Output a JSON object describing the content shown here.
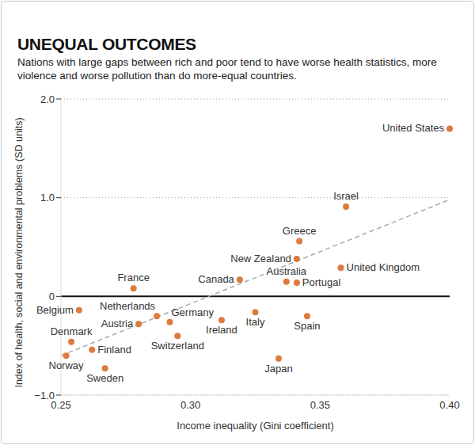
{
  "chart_data": {
    "type": "scatter",
    "title": "UNEQUAL OUTCOMES",
    "subtitle": "Nations with large gaps between rich and poor tend to have worse health statistics, more violence and worse pollution than do more-equal countries.",
    "x_label": "Income inequality (Gini coefficient)",
    "y_label": "Index of health, social and environmental problems (SD units)",
    "point_labels": [
      "United States",
      "Israel",
      "Greece",
      "New Zealand",
      "United Kingdom",
      "Australia",
      "Portugal",
      "Canada",
      "France",
      "Belgium",
      "Netherlands",
      "Austria",
      "Germany",
      "Switzerland",
      "Ireland",
      "Italy",
      "Spain",
      "Japan",
      "Denmark",
      "Finland",
      "Norway",
      "Sweden"
    ],
    "x": [
      0.4,
      0.36,
      0.342,
      0.341,
      0.358,
      0.337,
      0.341,
      0.319,
      0.278,
      0.257,
      0.287,
      0.28,
      0.292,
      0.295,
      0.312,
      0.325,
      0.345,
      0.334,
      0.254,
      0.262,
      0.252,
      0.267
    ],
    "values": [
      1.7,
      0.91,
      0.56,
      0.38,
      0.29,
      0.15,
      0.14,
      0.17,
      0.08,
      -0.14,
      -0.2,
      -0.28,
      -0.26,
      -0.4,
      -0.24,
      -0.16,
      -0.2,
      -0.63,
      -0.46,
      -0.54,
      -0.6,
      -0.73
    ],
    "color": "#dd7a3e",
    "marker": "circle",
    "trend_line": {
      "x": [
        0.25,
        0.4
      ],
      "values": [
        -0.6,
        0.98
      ],
      "line_style": "dashed"
    },
    "xlim": [
      0.25,
      0.4
    ],
    "xticks": [
      {
        "value": 0.25,
        "label": "0.25"
      },
      {
        "value": 0.3,
        "label": "0.30"
      },
      {
        "value": 0.35,
        "label": "0.35"
      },
      {
        "value": 0.4,
        "label": "0.40"
      }
    ],
    "ylim": [
      -1.0,
      2.0
    ],
    "yticks": [
      {
        "value": -1.0,
        "label": "−1.0"
      },
      0,
      {
        "value": 1.0,
        "label": "1.0"
      },
      {
        "value": 2.0,
        "label": "2.0"
      }
    ],
    "grid": true
  }
}
